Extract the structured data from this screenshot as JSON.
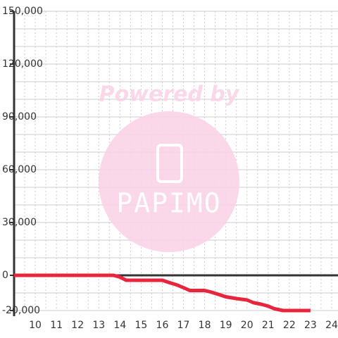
{
  "chart_data": {
    "type": "line",
    "x": [
      9,
      13.7,
      14,
      14.3,
      16,
      16.3,
      16.7,
      17,
      17.3,
      18,
      18.3,
      18.7,
      19,
      19.5,
      20,
      20.3,
      20.7,
      21,
      21.3,
      21.7,
      23
    ],
    "series": [
      {
        "color": "#e8253c",
        "values": [
          0,
          0,
          -1000,
          -2800,
          -2800,
          -4000,
          -5500,
          -7000,
          -8600,
          -8600,
          -9500,
          -11000,
          -12200,
          -13200,
          -14000,
          -15500,
          -16500,
          -17500,
          -19000,
          -20000,
          -20000
        ]
      }
    ],
    "xlim": [
      9,
      24.3
    ],
    "ylim": [
      -20000,
      150000
    ],
    "xticks": [
      10,
      11,
      12,
      13,
      14,
      15,
      16,
      17,
      18,
      19,
      20,
      21,
      22,
      23,
      24
    ],
    "yticks": [
      {
        "value": 150000,
        "label": "150,000"
      },
      {
        "value": 120000,
        "label": "120,000"
      },
      {
        "value": 90000,
        "label": "90,000"
      },
      {
        "value": 60000,
        "label": "60,000"
      },
      {
        "value": 30000,
        "label": "30,000"
      },
      0,
      {
        "value": -20000,
        "label": "-20,000"
      }
    ],
    "ygrid": [
      -20000,
      -10000,
      0,
      10000,
      20000,
      30000,
      40000,
      50000,
      60000,
      70000,
      80000,
      90000,
      100000,
      110000,
      120000,
      130000,
      140000,
      150000
    ],
    "xgrid": [
      9.5,
      10,
      10.5,
      11,
      11.5,
      12,
      12.5,
      13,
      13.5,
      14,
      14.5,
      15,
      15.5,
      16,
      16.5,
      17,
      17.5,
      18,
      18.5,
      19,
      19.5,
      20,
      20.5,
      21,
      21.5,
      22,
      22.5,
      23,
      23.5,
      24
    ],
    "grid": true,
    "watermark": {
      "text": "Powered by",
      "logo": "PAPIMO"
    }
  }
}
